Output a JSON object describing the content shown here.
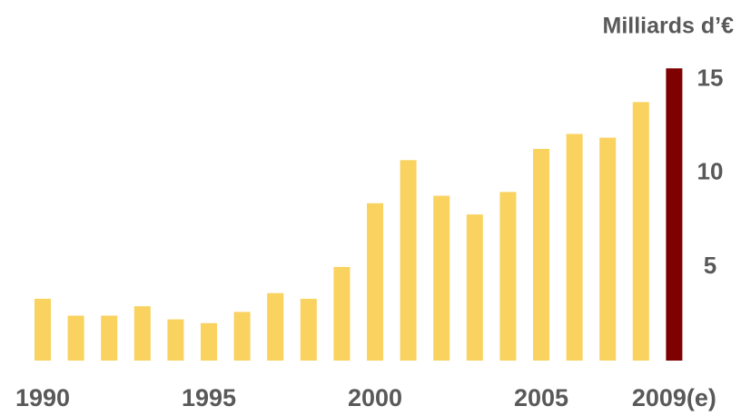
{
  "chart_data": {
    "type": "bar",
    "y_axis_label": "Milliards d’€",
    "categories": [
      "1990",
      null,
      null,
      null,
      null,
      "1995",
      null,
      null,
      null,
      null,
      "2000",
      null,
      null,
      null,
      null,
      "2005",
      null,
      null,
      null,
      "2009(e)"
    ],
    "values": [
      3.3,
      2.4,
      2.4,
      2.9,
      2.2,
      2.0,
      2.6,
      3.6,
      3.3,
      5.0,
      8.4,
      10.7,
      8.8,
      7.8,
      9.0,
      11.3,
      12.1,
      11.9,
      13.8,
      15.6
    ],
    "colors": [
      "#f9d25f",
      "#f9d25f",
      "#f9d25f",
      "#f9d25f",
      "#f9d25f",
      "#f9d25f",
      "#f9d25f",
      "#f9d25f",
      "#f9d25f",
      "#f9d25f",
      "#f9d25f",
      "#f9d25f",
      "#f9d25f",
      "#f9d25f",
      "#f9d25f",
      "#f9d25f",
      "#f9d25f",
      "#f9d25f",
      "#f9d25f",
      "#7f0000"
    ],
    "ylim": [
      0,
      16
    ],
    "yticks": [
      5,
      10,
      15
    ],
    "y_axis_side": "right",
    "grid": false
  }
}
